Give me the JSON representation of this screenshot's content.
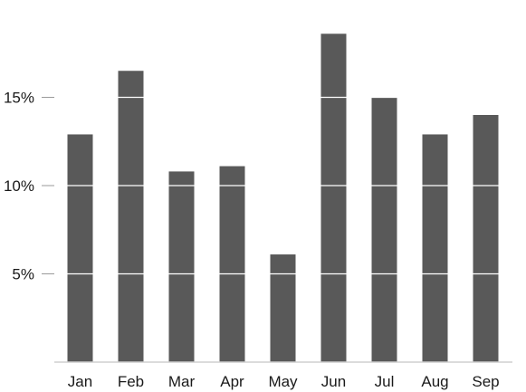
{
  "chart_data": {
    "type": "bar",
    "categories": [
      "Jan",
      "Feb",
      "Mar",
      "Apr",
      "May",
      "Jun",
      "Jul",
      "Aug",
      "Sep"
    ],
    "values": [
      12.9,
      16.5,
      10.8,
      11.1,
      6.1,
      18.6,
      15.0,
      12.9,
      14.0
    ],
    "y_unit": "%",
    "yticks": [
      5,
      10,
      15
    ],
    "ytick_labels": [
      "5%",
      "10%",
      "15%"
    ],
    "ylim": [
      0,
      20
    ],
    "grid": "horizontal gridlines drawn over bars",
    "title": "",
    "xlabel": "",
    "ylabel": "",
    "colors": {
      "bar": "#595959",
      "gridline": "#ffffff",
      "tick": "#9a9a9a",
      "baseline": "#cfcfcf",
      "text": "#1a1a1a"
    }
  }
}
